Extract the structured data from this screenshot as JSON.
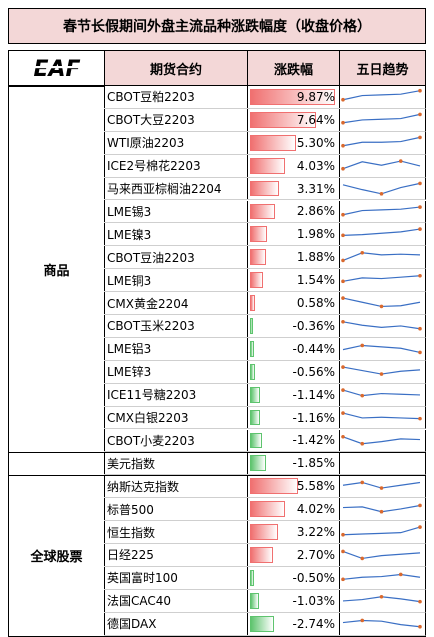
{
  "title": "春节长假期间外盘主流品种涨跌幅度（收盘价格）",
  "logo_text": "EAF",
  "headers": {
    "contract": "期货合约",
    "change": "涨跌幅",
    "trend": "五日趋势"
  },
  "colors": {
    "header_bg": "#f3d7d7",
    "up": "#f07070",
    "down": "#5ec46e",
    "spark_line": "#3a6fc4",
    "spark_marker": "#d9692e"
  },
  "chart_data": {
    "type": "table",
    "groups": [
      {
        "name": "商品",
        "rows": [
          {
            "contract": "CBOT豆粕2203",
            "change": 9.87,
            "change_label": "9.87%",
            "trend": [
              0.3,
              0.6,
              0.65,
              0.7,
              0.95
            ]
          },
          {
            "contract": "CBOT大豆2203",
            "change": 7.64,
            "change_label": "7.64%",
            "trend": [
              0.3,
              0.5,
              0.55,
              0.6,
              0.9
            ]
          },
          {
            "contract": "WTI原油2203",
            "change": 5.3,
            "change_label": "5.30%",
            "trend": [
              0.3,
              0.55,
              0.55,
              0.6,
              0.9
            ]
          },
          {
            "contract": "ICE2号棉花2203",
            "change": 4.03,
            "change_label": "4.03%",
            "trend": [
              0.3,
              0.8,
              0.55,
              0.85,
              0.5
            ]
          },
          {
            "contract": "马来西亚棕榈油2204",
            "change": 3.31,
            "change_label": "3.31%",
            "trend": [
              0.8,
              0.45,
              0.15,
              0.6,
              0.9
            ]
          },
          {
            "contract": "LME锡3",
            "change": 2.86,
            "change_label": "2.86%",
            "trend": [
              0.3,
              0.6,
              0.65,
              0.7,
              0.85
            ]
          },
          {
            "contract": "LME镍3",
            "change": 1.98,
            "change_label": "1.98%",
            "trend": [
              0.4,
              0.45,
              0.55,
              0.65,
              0.85
            ]
          },
          {
            "contract": "CBOT豆油2203",
            "change": 1.88,
            "change_label": "1.88%",
            "trend": [
              0.25,
              0.8,
              0.65,
              0.7,
              0.65
            ]
          },
          {
            "contract": "LME铜3",
            "change": 1.54,
            "change_label": "1.54%",
            "trend": [
              0.4,
              0.65,
              0.6,
              0.7,
              0.8
            ]
          },
          {
            "contract": "CMX黄金2204",
            "change": 0.58,
            "change_label": "0.58%",
            "trend": [
              0.85,
              0.55,
              0.25,
              0.3,
              0.55
            ]
          },
          {
            "contract": "CBOT玉米2203",
            "change": -0.36,
            "change_label": "-0.36%",
            "trend": [
              0.8,
              0.55,
              0.4,
              0.5,
              0.3
            ]
          },
          {
            "contract": "LME铝3",
            "change": -0.44,
            "change_label": "-0.44%",
            "trend": [
              0.45,
              0.75,
              0.65,
              0.55,
              0.25
            ]
          },
          {
            "contract": "LME锌3",
            "change": -0.56,
            "change_label": "-0.56%",
            "trend": [
              0.85,
              0.6,
              0.35,
              0.55,
              0.65
            ]
          },
          {
            "contract": "ICE11号糖2203",
            "change": -1.14,
            "change_label": "-1.14%",
            "trend": [
              0.85,
              0.45,
              0.6,
              0.55,
              0.5
            ]
          },
          {
            "contract": "CMX白银2203",
            "change": -1.16,
            "change_label": "-1.16%",
            "trend": [
              0.85,
              0.5,
              0.55,
              0.5,
              0.45
            ]
          },
          {
            "contract": "CBOT小麦2203",
            "change": -1.42,
            "change_label": "-1.42%",
            "trend": [
              0.8,
              0.3,
              0.45,
              0.65,
              0.6
            ]
          }
        ]
      },
      {
        "name": "",
        "rows": [
          {
            "contract": "美元指数",
            "change": -1.85,
            "change_label": "-1.85%",
            "trend": []
          }
        ]
      },
      {
        "name": "全球股票",
        "rows": [
          {
            "contract": "纳斯达克指数",
            "change": 5.58,
            "change_label": "5.58%",
            "trend": [
              0.55,
              0.75,
              0.35,
              0.55,
              0.75
            ]
          },
          {
            "contract": "标普500",
            "change": 4.02,
            "change_label": "4.02%",
            "trend": [
              0.6,
              0.65,
              0.3,
              0.5,
              0.75
            ]
          },
          {
            "contract": "恒生指数",
            "change": 3.22,
            "change_label": "3.22%",
            "trend": [
              0.3,
              0.35,
              0.4,
              0.45,
              0.85
            ]
          },
          {
            "contract": "日经225",
            "change": 2.7,
            "change_label": "2.70%",
            "trend": [
              0.75,
              0.25,
              0.45,
              0.55,
              0.65
            ]
          },
          {
            "contract": "英国富时100",
            "change": -0.5,
            "change_label": "-0.50%",
            "trend": [
              0.4,
              0.55,
              0.6,
              0.75,
              0.55
            ]
          },
          {
            "contract": "法国CAC40",
            "change": -1.03,
            "change_label": "-1.03%",
            "trend": [
              0.5,
              0.6,
              0.8,
              0.65,
              0.45
            ]
          },
          {
            "contract": "德国DAX",
            "change": -2.74,
            "change_label": "-2.74%",
            "trend": [
              0.6,
              0.75,
              0.7,
              0.45,
              0.3
            ]
          }
        ]
      }
    ]
  }
}
